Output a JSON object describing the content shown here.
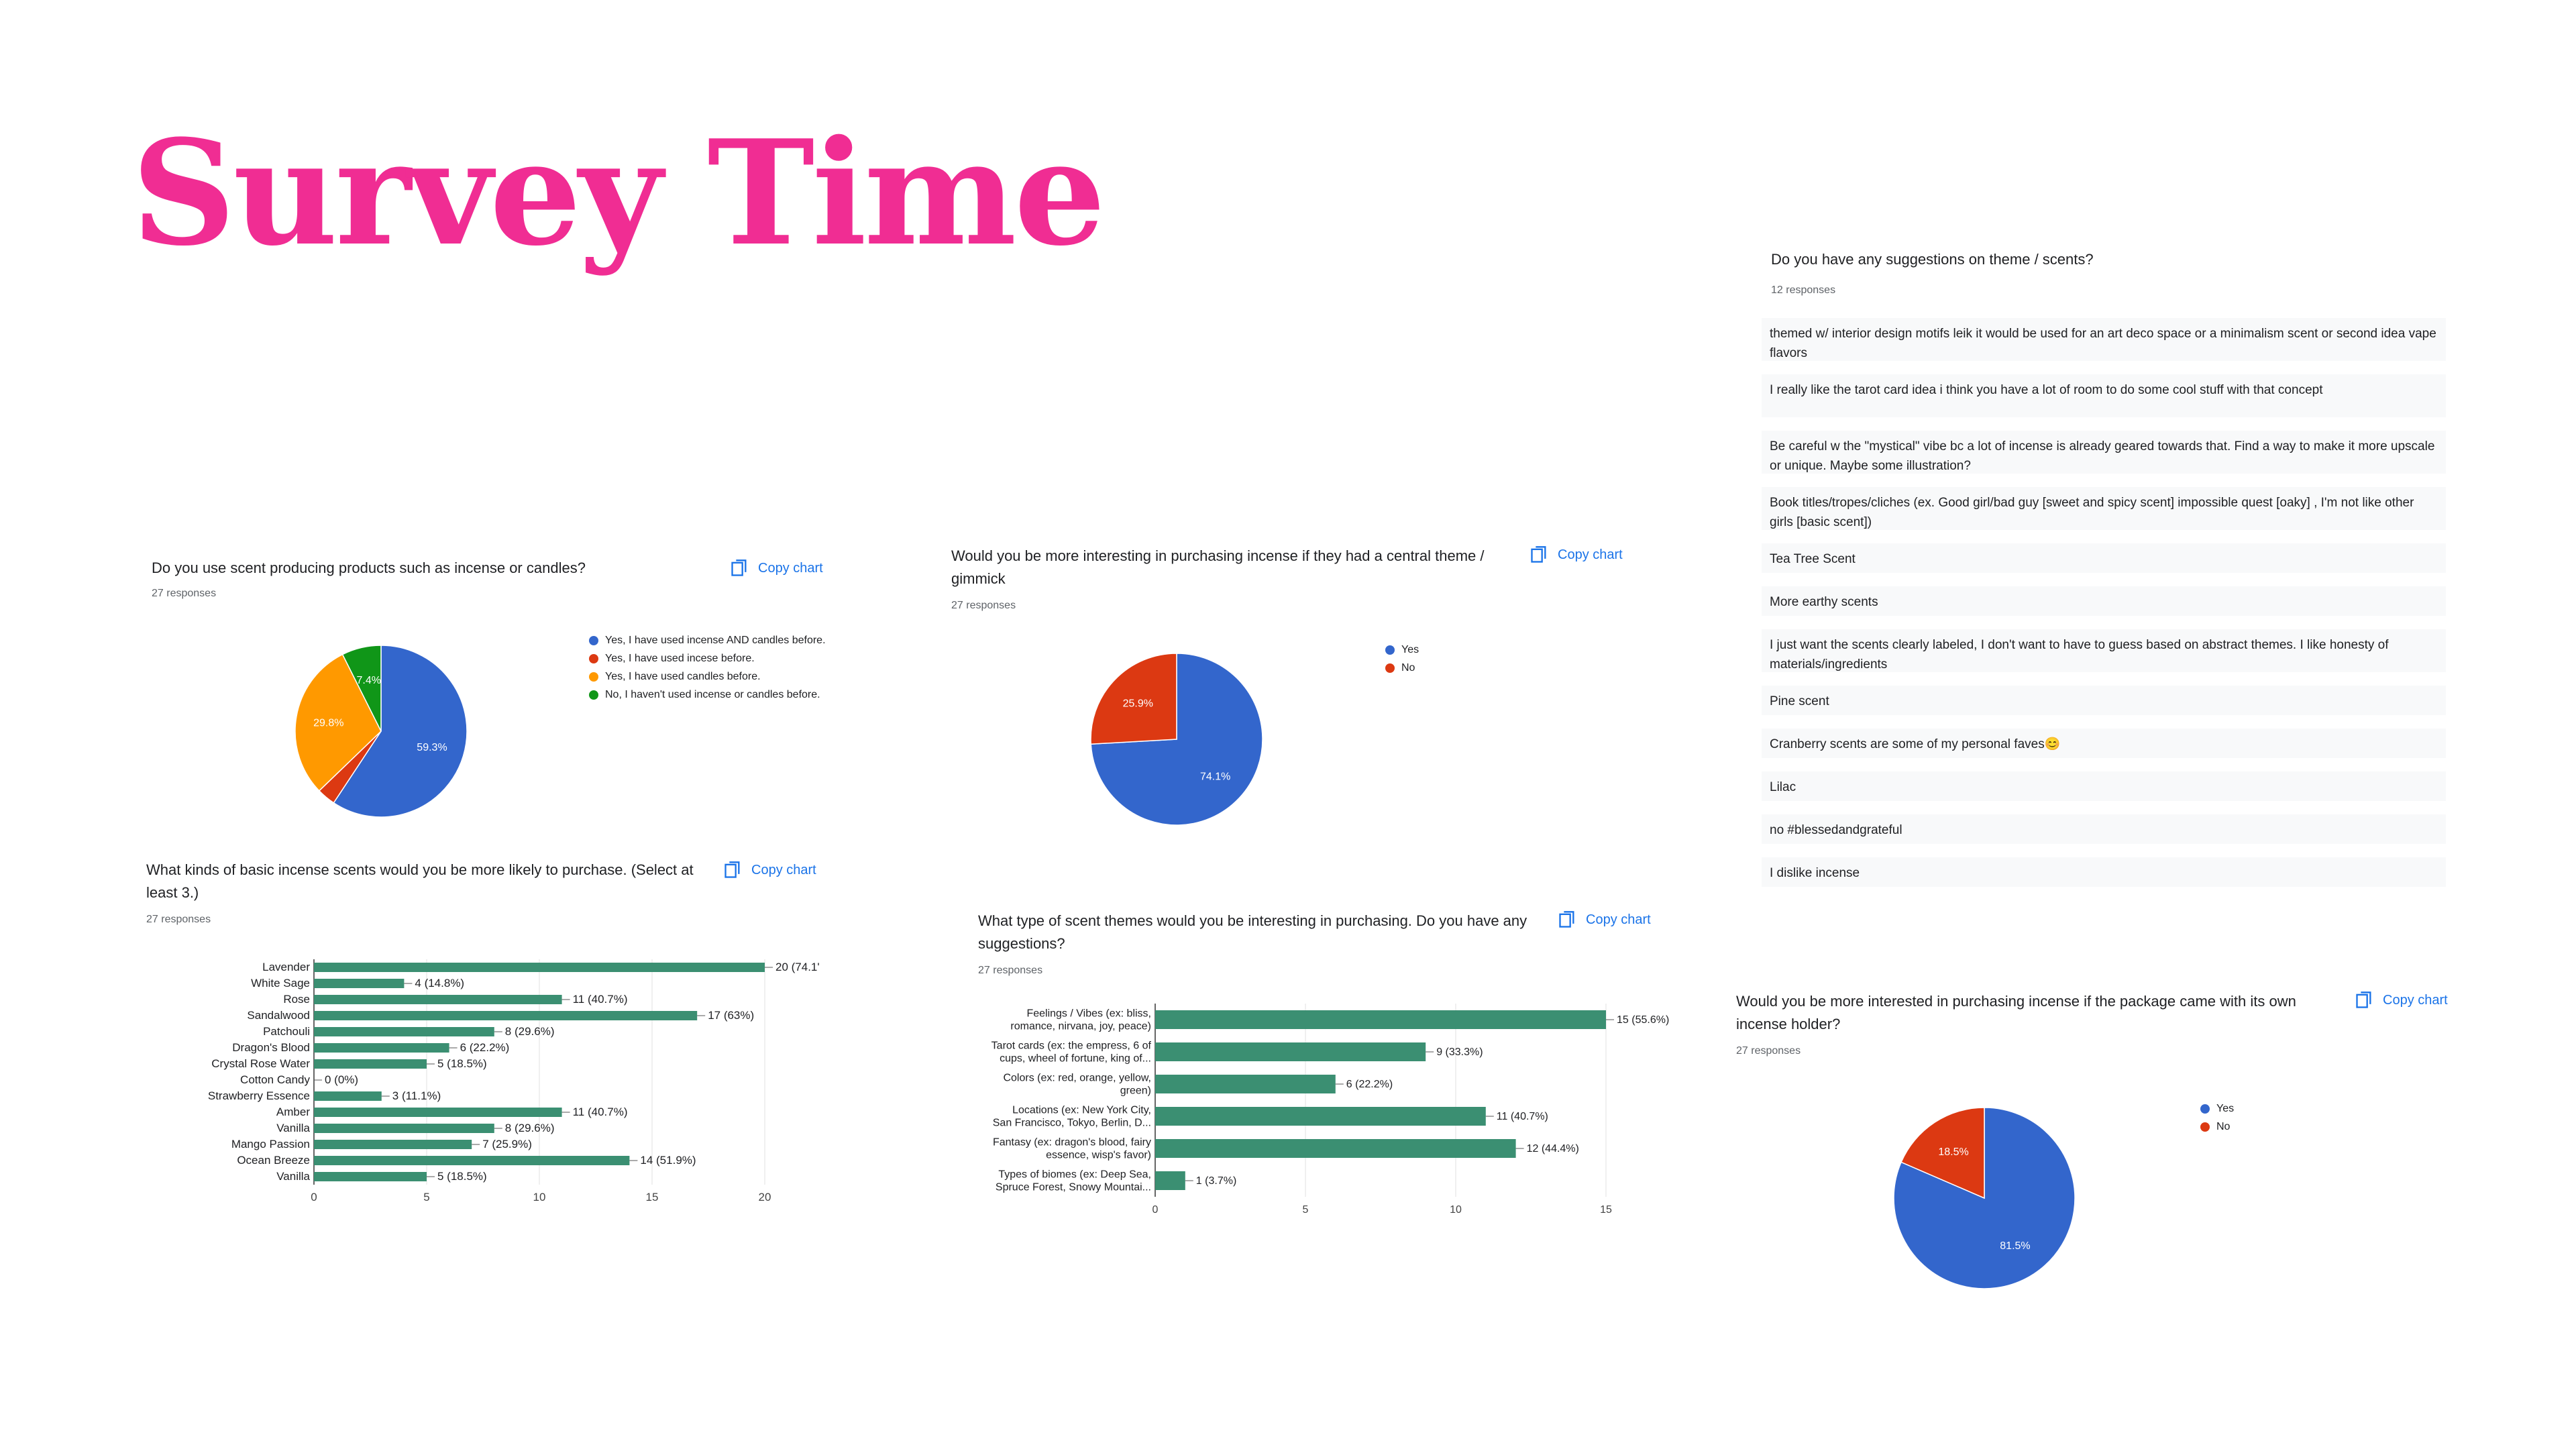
{
  "page": {
    "title": "Survey Time",
    "title_color": "#f02d93"
  },
  "ui": {
    "copy_label": "Copy chart",
    "accent": "#1a73e8"
  },
  "chart_data": [
    {
      "type": "pie",
      "question": "Do you use scent producing products such as incense or candles?",
      "responses": "27 responses",
      "slices": [
        {
          "label": "Yes, I have used incense AND candles before.",
          "value": 59.3,
          "display": "59.3%",
          "color": "#3366cc"
        },
        {
          "label": "Yes, I have used incese before.",
          "value": 3.5,
          "display": "",
          "color": "#dc3912"
        },
        {
          "label": "Yes, I have used candles before.",
          "value": 29.8,
          "display": "29.8%",
          "color": "#ff9900"
        },
        {
          "label": "No, I haven't used incense or candles before.",
          "value": 7.4,
          "display": "7.4%",
          "color": "#109618"
        }
      ]
    },
    {
      "type": "pie",
      "question": "Would you be more interesting in purchasing incense if they had a central theme / gimmick",
      "responses": "27 responses",
      "slices": [
        {
          "label": "Yes",
          "value": 74.1,
          "display": "74.1%",
          "color": "#3366cc"
        },
        {
          "label": "No",
          "value": 25.9,
          "display": "25.9%",
          "color": "#dc3912"
        }
      ]
    },
    {
      "type": "bar",
      "question": "What kinds of basic incense scents would you be more likely to purchase. (Select at least 3.)",
      "responses": "27 responses",
      "categories": [
        "Lavender",
        "White Sage",
        "Rose",
        "Sandalwood",
        "Patchouli",
        "Dragon's Blood",
        "Crystal Rose Water",
        "Cotton Candy",
        "Strawberry Essence",
        "Amber",
        "Vanilla",
        "Mango Passion",
        "Ocean Breeze",
        "Vanilla"
      ],
      "values": [
        20,
        4,
        11,
        17,
        8,
        6,
        5,
        0,
        3,
        11,
        8,
        7,
        14,
        5
      ],
      "value_labels": [
        "20 (74.1'",
        "4 (14.8%)",
        "11 (40.7%)",
        "17 (63%)",
        "8 (29.6%)",
        "6 (22.2%)",
        "5 (18.5%)",
        "0 (0%)",
        "3 (11.1%)",
        "11 (40.7%)",
        "8 (29.6%)",
        "7 (25.9%)",
        "14 (51.9%)",
        "5 (18.5%)"
      ],
      "x_ticks": [
        "0",
        "5",
        "10",
        "15",
        "20"
      ],
      "xlim": [
        0,
        20
      ],
      "color": "#3b8f72"
    },
    {
      "type": "bar",
      "question": "What type of scent themes would you be interesting in purchasing. Do you have any suggestions?",
      "responses": "27 responses",
      "categories": [
        [
          "Feelings / Vibes (ex: bliss,",
          "romance, nirvana, joy, peace)"
        ],
        [
          "Tarot cards (ex: the empress, 6 of",
          "cups, wheel of fortune, king of..."
        ],
        [
          "Colors (ex: red, orange, yellow,",
          "green)"
        ],
        [
          "Locations (ex: New York City,",
          "San Francisco, Tokyo, Berlin, D..."
        ],
        [
          "Fantasy (ex: dragon's blood, fairy",
          "essence, wisp's favor)"
        ],
        [
          "Types of biomes (ex: Deep Sea,",
          "Spruce Forest, Snowy Mountai..."
        ]
      ],
      "values": [
        15,
        9,
        6,
        11,
        12,
        1
      ],
      "value_labels": [
        "15 (55.6%)",
        "9 (33.3%)",
        "6 (22.2%)",
        "11 (40.7%)",
        "12 (44.4%)",
        "1 (3.7%)"
      ],
      "x_ticks": [
        "0",
        "5",
        "10",
        "15"
      ],
      "xlim": [
        0,
        15
      ],
      "color": "#3b8f72"
    },
    {
      "type": "table",
      "question": "Do you have any suggestions on theme / scents?",
      "responses": "12 responses",
      "rows": [
        "themed w/ interior design motifs leik it would be used for an art deco space or a minimalism scent or second idea vape flavors",
        "I really like the tarot card idea i think you have a lot of room to do some cool stuff with that concept",
        "Be careful w the \"mystical\" vibe bc a lot of incense is already geared towards that. Find a way to make it more upscale or unique. Maybe some illustration?",
        "Book titles/tropes/cliches (ex. Good girl/bad guy [sweet and spicy scent] impossible quest [oaky] , I'm not like other girls [basic scent])",
        "Tea Tree Scent",
        "More earthy scents",
        "I just want the scents clearly labeled, I don't want to have to guess based on abstract themes. I like honesty of materials/ingredients",
        "Pine scent",
        "Cranberry scents are some of my personal faves😊",
        "Lilac",
        "no #blessedandgrateful",
        "I dislike incense"
      ]
    },
    {
      "type": "pie",
      "question": "Would you be more interested in purchasing incense if the package came with its own incense holder?",
      "responses": "27 responses",
      "slices": [
        {
          "label": "Yes",
          "value": 81.5,
          "display": "81.5%",
          "color": "#3366cc"
        },
        {
          "label": "No",
          "value": 18.5,
          "display": "18.5%",
          "color": "#dc3912"
        }
      ]
    }
  ]
}
